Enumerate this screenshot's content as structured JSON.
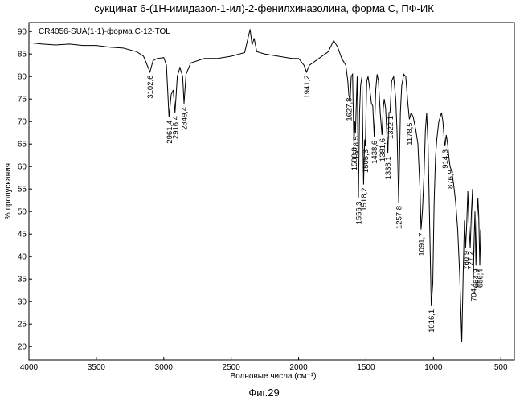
{
  "chart_data": {
    "type": "line",
    "title": "сукцинат 6-(1Н-имидазол-1-ил)-2-фенилхиназолина, форма С, ПФ-ИК",
    "sample_label": "CR4056-SUA(1-1)-форма С-12-TOL",
    "xlabel": "Волновые числа (см⁻¹)",
    "ylabel": "% пропускания",
    "xlim": [
      4000,
      400
    ],
    "ylim": [
      17,
      92
    ],
    "x_ticks": [
      4000,
      3500,
      3000,
      2500,
      2000,
      1500,
      1000,
      500
    ],
    "y_ticks": [
      90,
      85,
      80,
      75,
      70,
      65,
      60,
      55,
      50,
      45,
      40,
      35,
      30,
      25,
      20
    ],
    "grid": false,
    "series": [
      {
        "points": [
          [
            3990,
            87.5
          ],
          [
            3900,
            87.2
          ],
          [
            3800,
            87.0
          ],
          [
            3700,
            87.2
          ],
          [
            3600,
            86.9
          ],
          [
            3500,
            86.9
          ],
          [
            3400,
            86.5
          ],
          [
            3300,
            86.3
          ],
          [
            3200,
            85.5
          ],
          [
            3150,
            84.5
          ],
          [
            3102.6,
            81.0
          ],
          [
            3080,
            83.5
          ],
          [
            3050,
            84.0
          ],
          [
            3000,
            84.2
          ],
          [
            2980,
            82.5
          ],
          [
            2961.4,
            71.0
          ],
          [
            2945,
            76.0
          ],
          [
            2930,
            77.0
          ],
          [
            2916.4,
            72.0
          ],
          [
            2900,
            80.0
          ],
          [
            2880,
            82.0
          ],
          [
            2860,
            80.0
          ],
          [
            2849.4,
            74.0
          ],
          [
            2835,
            80.5
          ],
          [
            2800,
            83.0
          ],
          [
            2700,
            84.0
          ],
          [
            2600,
            84.0
          ],
          [
            2500,
            84.5
          ],
          [
            2400,
            85.3
          ],
          [
            2360,
            90.5
          ],
          [
            2345,
            87.0
          ],
          [
            2330,
            88.5
          ],
          [
            2310,
            85.5
          ],
          [
            2250,
            85.0
          ],
          [
            2150,
            84.5
          ],
          [
            2050,
            84.0
          ],
          [
            2000,
            84.0
          ],
          [
            1960,
            82.5
          ],
          [
            1941.2,
            81.0
          ],
          [
            1920,
            82.5
          ],
          [
            1850,
            84.0
          ],
          [
            1780,
            85.5
          ],
          [
            1740,
            88.0
          ],
          [
            1710,
            86.5
          ],
          [
            1680,
            84.0
          ],
          [
            1650,
            82.5
          ],
          [
            1635,
            79.0
          ],
          [
            1627.8,
            76.0
          ],
          [
            1618,
            74.5
          ],
          [
            1610,
            80.0
          ],
          [
            1600,
            80.5
          ],
          [
            1590,
            65.5
          ],
          [
            1588.8,
            65.0
          ],
          [
            1583,
            70.0
          ],
          [
            1578.5,
            67.5
          ],
          [
            1570,
            76.0
          ],
          [
            1565,
            80.0
          ],
          [
            1556.3,
            53.0
          ],
          [
            1548,
            72.0
          ],
          [
            1540,
            78.0
          ],
          [
            1530,
            80.0
          ],
          [
            1518.2,
            56.0
          ],
          [
            1510,
            66.0
          ],
          [
            1505.3,
            64.5
          ],
          [
            1495,
            79.0
          ],
          [
            1485,
            80.0
          ],
          [
            1475,
            78.0
          ],
          [
            1460,
            74.0
          ],
          [
            1450,
            73.5
          ],
          [
            1438.6,
            66.5
          ],
          [
            1428,
            77.0
          ],
          [
            1418,
            80.5
          ],
          [
            1408,
            79.0
          ],
          [
            1395,
            72.0
          ],
          [
            1381.6,
            67.0
          ],
          [
            1372,
            73.0
          ],
          [
            1365,
            75.0
          ],
          [
            1355,
            73.0
          ],
          [
            1338.1,
            63.0
          ],
          [
            1330,
            72.0
          ],
          [
            1322.1,
            72.0
          ],
          [
            1310,
            79.0
          ],
          [
            1295,
            80.0
          ],
          [
            1280,
            75.0
          ],
          [
            1270,
            68.0
          ],
          [
            1257.8,
            52.0
          ],
          [
            1245,
            72.0
          ],
          [
            1235,
            78.0
          ],
          [
            1220,
            80.5
          ],
          [
            1205,
            80.0
          ],
          [
            1190,
            74.0
          ],
          [
            1178.5,
            70.5
          ],
          [
            1165,
            72.0
          ],
          [
            1150,
            71.0
          ],
          [
            1130,
            68.0
          ],
          [
            1115,
            65.0
          ],
          [
            1100,
            55.0
          ],
          [
            1091.7,
            46.0
          ],
          [
            1082,
            50.0
          ],
          [
            1070,
            58.0
          ],
          [
            1060,
            68.0
          ],
          [
            1050,
            72.0
          ],
          [
            1040,
            65.0
          ],
          [
            1030,
            50.0
          ],
          [
            1016.1,
            29.0
          ],
          [
            1005,
            34.0
          ],
          [
            995,
            52.0
          ],
          [
            985,
            62.0
          ],
          [
            975,
            66.0
          ],
          [
            960,
            70.0
          ],
          [
            940,
            72.0
          ],
          [
            930,
            70.0
          ],
          [
            920,
            66.0
          ],
          [
            914.3,
            64.5
          ],
          [
            905,
            67.0
          ],
          [
            895,
            65.0
          ],
          [
            885,
            62.0
          ],
          [
            876.9,
            60.0
          ],
          [
            865,
            59.0
          ],
          [
            850,
            56.0
          ],
          [
            835,
            52.0
          ],
          [
            820,
            46.0
          ],
          [
            805,
            36.0
          ],
          [
            790,
            21.0
          ],
          [
            780,
            35.0
          ],
          [
            770,
            48.0
          ],
          [
            760.9,
            42.0
          ],
          [
            752,
            48.0
          ],
          [
            745,
            54.5
          ],
          [
            737,
            47.0
          ],
          [
            727.2,
            42.0
          ],
          [
            718,
            50.0
          ],
          [
            710,
            55.0
          ],
          [
            704.1,
            35.0
          ],
          [
            698,
            44.0
          ],
          [
            692,
            50.0
          ],
          [
            684.9,
            38.0
          ],
          [
            678,
            48.0
          ],
          [
            670,
            53.0
          ],
          [
            664,
            49.0
          ],
          [
            656.4,
            38.0
          ],
          [
            650,
            46.0
          ]
        ]
      }
    ],
    "peaks": [
      {
        "wavenumber": 3102.6,
        "label": "3102,6"
      },
      {
        "wavenumber": 2961.4,
        "label": "2961,4"
      },
      {
        "wavenumber": 2916.4,
        "label": "2916,4"
      },
      {
        "wavenumber": 2849.4,
        "label": "2849,4"
      },
      {
        "wavenumber": 1941.2,
        "label": "1941,2"
      },
      {
        "wavenumber": 1627.8,
        "label": "1627,8"
      },
      {
        "wavenumber": 1588.8,
        "label": "1588,8"
      },
      {
        "wavenumber": 1578.5,
        "label": "1578,5"
      },
      {
        "wavenumber": 1556.3,
        "label": "1556,3"
      },
      {
        "wavenumber": 1518.2,
        "label": "1518,2"
      },
      {
        "wavenumber": 1505.3,
        "label": "1505,3"
      },
      {
        "wavenumber": 1438.6,
        "label": "1438,6"
      },
      {
        "wavenumber": 1381.6,
        "label": "1381,6"
      },
      {
        "wavenumber": 1338.1,
        "label": "1338,1"
      },
      {
        "wavenumber": 1322.1,
        "label": "1322,1"
      },
      {
        "wavenumber": 1257.8,
        "label": "1257,8"
      },
      {
        "wavenumber": 1178.5,
        "label": "1178,5"
      },
      {
        "wavenumber": 1091.7,
        "label": "1091,7"
      },
      {
        "wavenumber": 1016.1,
        "label": "1016,1"
      },
      {
        "wavenumber": 914.3,
        "label": "914,3"
      },
      {
        "wavenumber": 876.9,
        "label": "876,9"
      },
      {
        "wavenumber": 760.9,
        "label": "760,9"
      },
      {
        "wavenumber": 727.2,
        "label": "727,2"
      },
      {
        "wavenumber": 704.1,
        "label": "704,1"
      },
      {
        "wavenumber": 684.9,
        "label": "684,9"
      },
      {
        "wavenumber": 656.4,
        "label": "656,4"
      }
    ]
  },
  "figure_caption": "Фиг.29",
  "colors": {
    "line": "#000000",
    "frame": "#000000",
    "background": "#ffffff"
  }
}
